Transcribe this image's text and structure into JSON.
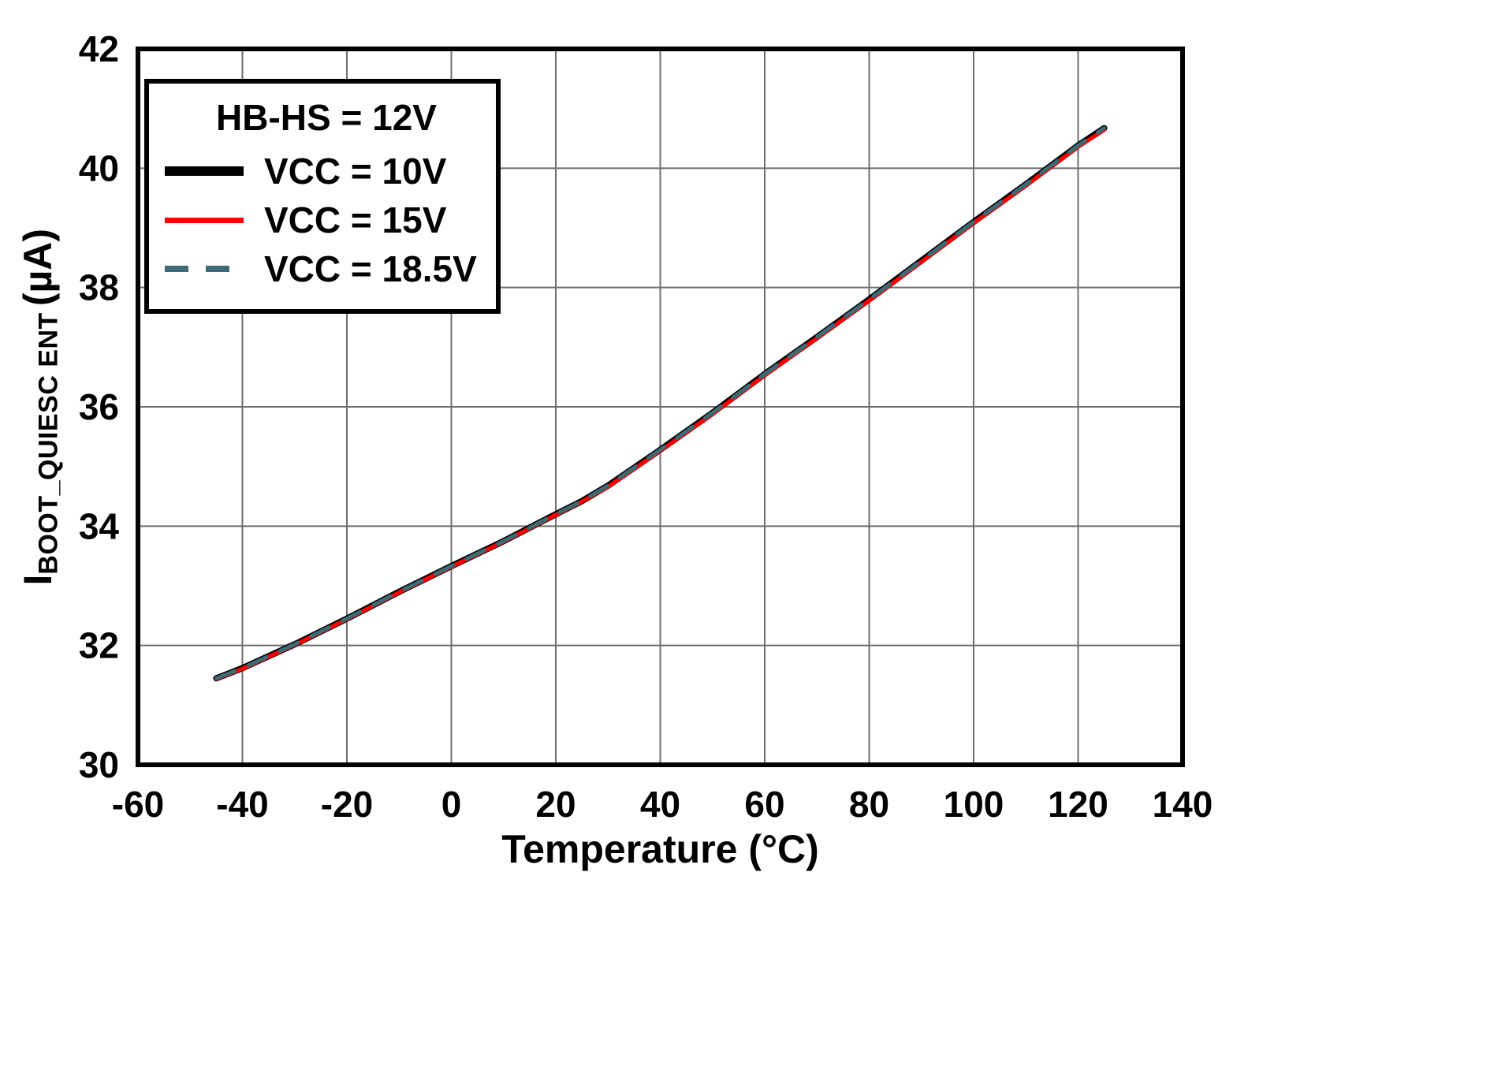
{
  "figure": {
    "background": "#ffffff",
    "frame_color": "#000000",
    "grid_color": "#6e6e6e"
  },
  "legend": {
    "title": "HB-HS = 12V",
    "items": [
      {
        "label": "VCC = 10V",
        "color": "#000000",
        "dash": false,
        "thickness": 12
      },
      {
        "label": "VCC = 15V",
        "color": "#ff0000",
        "dash": false,
        "thickness": 7
      },
      {
        "label": "VCC = 18.5V",
        "color": "#3d6a74",
        "dash": true,
        "thickness": 8
      }
    ]
  },
  "chart_data": {
    "type": "line",
    "title": "",
    "xlabel": "Temperature (°C)",
    "ylabel": "IBOOT_QUIESC ENT (µA)",
    "ylabel_parts": {
      "main": "I",
      "sub": "BOOT_QUIESC ENT",
      "unit": "(µA)"
    },
    "xlim": [
      -60,
      140
    ],
    "ylim": [
      30,
      42
    ],
    "xticks": [
      -60,
      -40,
      -20,
      0,
      20,
      40,
      60,
      80,
      100,
      120,
      140
    ],
    "yticks": [
      30,
      32,
      34,
      36,
      38,
      40,
      42
    ],
    "grid": true,
    "legend_position": "top-left",
    "x": [
      -45,
      -40,
      -30,
      -20,
      -10,
      0,
      10,
      20,
      25,
      30,
      40,
      50,
      60,
      70,
      80,
      90,
      100,
      110,
      120,
      125
    ],
    "series": [
      {
        "name": "VCC = 10V",
        "color": "#000000",
        "style": "solid",
        "width": 8,
        "values": [
          31.45,
          31.62,
          32.02,
          32.45,
          32.9,
          33.33,
          33.75,
          34.2,
          34.42,
          34.68,
          35.28,
          35.9,
          36.55,
          37.17,
          37.8,
          38.45,
          39.1,
          39.73,
          40.38,
          40.67
        ]
      },
      {
        "name": "VCC = 15V",
        "color": "#ff0000",
        "style": "solid",
        "width": 5,
        "values": [
          31.44,
          31.61,
          32.01,
          32.44,
          32.89,
          33.32,
          33.74,
          34.19,
          34.41,
          34.66,
          35.26,
          35.88,
          36.53,
          37.15,
          37.78,
          38.43,
          39.08,
          39.71,
          40.36,
          40.64
        ]
      },
      {
        "name": "VCC = 18.5V",
        "color": "#3d6a74",
        "style": "dashed",
        "width": 5,
        "values": [
          31.45,
          31.62,
          32.02,
          32.45,
          32.9,
          33.33,
          33.75,
          34.2,
          34.42,
          34.68,
          35.28,
          35.9,
          36.55,
          37.17,
          37.8,
          38.45,
          39.1,
          39.73,
          40.38,
          40.67
        ]
      }
    ]
  }
}
